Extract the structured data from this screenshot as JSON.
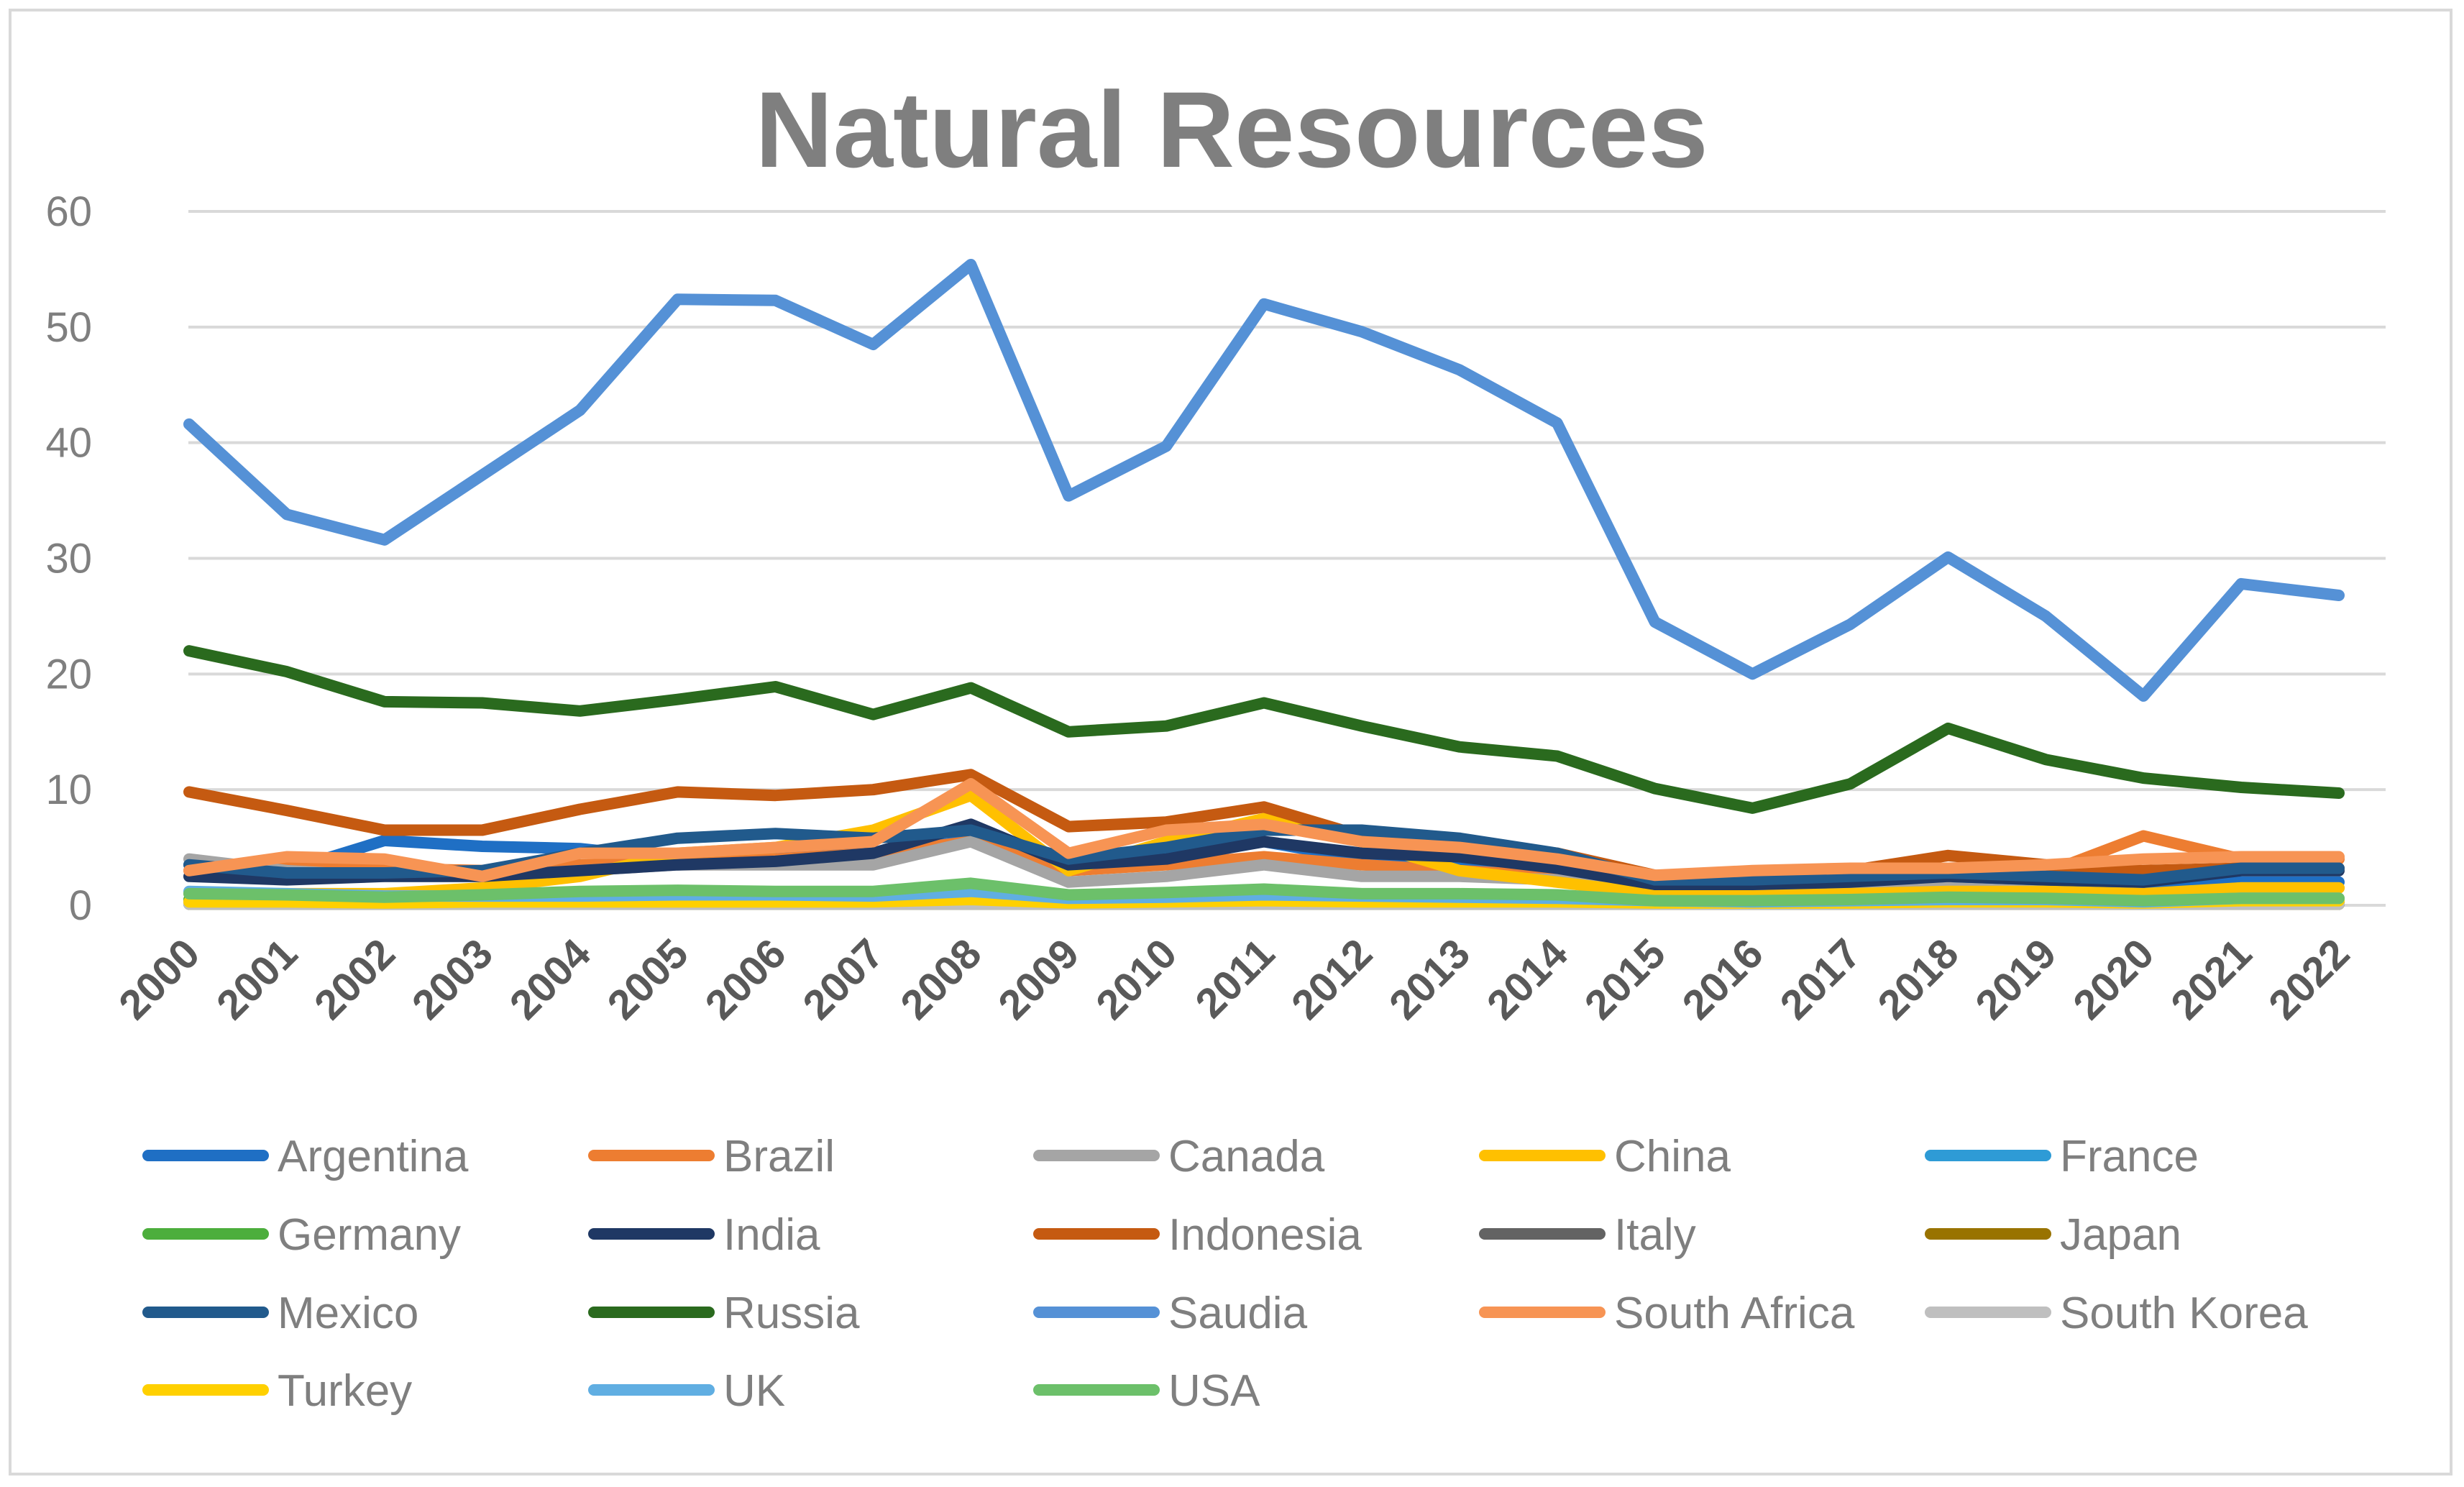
{
  "chart_data": {
    "type": "line",
    "title": "Natural Resources",
    "xlabel": "",
    "ylabel": "",
    "ylim": [
      0,
      60
    ],
    "yticks": [
      "0",
      "10",
      "20",
      "30",
      "40",
      "50",
      "60"
    ],
    "grid": true,
    "legend_position": "bottom",
    "categories": [
      "2000",
      "2001",
      "2002",
      "2003",
      "2004",
      "2005",
      "2006",
      "2007",
      "2008",
      "2009",
      "2010",
      "2011",
      "2012",
      "2013",
      "2014",
      "2015",
      "2016",
      "2017",
      "2018",
      "2019",
      "2020",
      "2021",
      "2022"
    ],
    "series": [
      {
        "name": "Argentina",
        "color": "#1f6fc4",
        "values": [
          3.5,
          3.0,
          5.6,
          5.1,
          4.9,
          4.0,
          4.2,
          4.5,
          5.6,
          3.0,
          4.2,
          5.5,
          4.0,
          3.5,
          3.2,
          1.4,
          1.5,
          1.5,
          1.5,
          1.5,
          1.5,
          2.0,
          2.0
        ]
      },
      {
        "name": "Brazil",
        "color": "#ed7d31",
        "values": [
          3.0,
          3.2,
          3.2,
          3.0,
          3.5,
          3.6,
          4.0,
          4.5,
          5.5,
          3.0,
          3.5,
          4.2,
          3.5,
          3.0,
          2.5,
          1.8,
          2.0,
          2.2,
          2.5,
          2.8,
          6.0,
          4.0,
          4.0
        ]
      },
      {
        "name": "Canada",
        "color": "#a5a5a5",
        "values": [
          4.0,
          3.0,
          2.5,
          2.5,
          3.0,
          3.5,
          3.5,
          3.5,
          5.5,
          2.0,
          2.5,
          3.5,
          2.5,
          2.5,
          2.2,
          1.0,
          1.0,
          1.2,
          1.5,
          1.2,
          0.8,
          1.5,
          1.5
        ]
      },
      {
        "name": "China",
        "color": "#ffc000",
        "values": [
          1.0,
          1.0,
          1.0,
          1.5,
          2.5,
          4.5,
          5.0,
          6.5,
          9.5,
          3.0,
          5.5,
          7.5,
          5.5,
          3.0,
          2.0,
          1.0,
          0.8,
          1.0,
          1.2,
          1.2,
          1.0,
          1.5,
          1.5
        ]
      },
      {
        "name": "France",
        "color": "#2e9bd6",
        "values": [
          0.1,
          0.1,
          0.1,
          0.1,
          0.1,
          0.1,
          0.1,
          0.1,
          0.1,
          0.1,
          0.1,
          0.1,
          0.1,
          0.1,
          0.1,
          0.1,
          0.1,
          0.1,
          0.1,
          0.1,
          0.1,
          0.1,
          0.1
        ]
      },
      {
        "name": "Germany",
        "color": "#4cae3c",
        "values": [
          0.5,
          0.4,
          0.3,
          0.3,
          0.3,
          0.3,
          0.3,
          0.3,
          0.4,
          0.2,
          0.2,
          0.3,
          0.2,
          0.2,
          0.2,
          0.1,
          0.1,
          0.1,
          0.1,
          0.1,
          0.1,
          0.2,
          0.2
        ]
      },
      {
        "name": "India",
        "color": "#1f3864",
        "values": [
          2.5,
          2.2,
          2.5,
          2.5,
          3.0,
          3.5,
          3.8,
          4.5,
          7.0,
          3.5,
          4.0,
          5.5,
          4.5,
          4.2,
          3.2,
          1.8,
          1.8,
          2.0,
          2.5,
          2.2,
          2.0,
          3.0,
          3.0
        ]
      },
      {
        "name": "Indonesia",
        "color": "#c55a11",
        "values": [
          9.8,
          8.2,
          6.5,
          6.5,
          8.3,
          9.8,
          9.5,
          10.0,
          11.3,
          6.8,
          7.2,
          8.5,
          6.0,
          5.2,
          4.5,
          2.6,
          2.5,
          3.0,
          4.3,
          3.5,
          3.0,
          3.2,
          3.2
        ]
      },
      {
        "name": "Italy",
        "color": "#636363",
        "values": [
          0.3,
          0.3,
          0.3,
          0.3,
          0.3,
          0.3,
          0.3,
          0.3,
          0.3,
          0.2,
          0.2,
          0.2,
          0.2,
          0.2,
          0.2,
          0.1,
          0.1,
          0.1,
          0.1,
          0.1,
          0.1,
          0.1,
          0.1
        ]
      },
      {
        "name": "Japan",
        "color": "#997300",
        "values": [
          0.1,
          0.1,
          0.1,
          0.1,
          0.1,
          0.1,
          0.1,
          0.1,
          0.1,
          0.1,
          0.1,
          0.1,
          0.1,
          0.1,
          0.1,
          0.1,
          0.1,
          0.1,
          0.1,
          0.1,
          0.1,
          0.1,
          0.1
        ]
      },
      {
        "name": "Mexico",
        "color": "#215a8c",
        "values": [
          3.5,
          2.8,
          2.8,
          3.0,
          4.5,
          5.8,
          6.2,
          5.8,
          6.5,
          4.0,
          5.0,
          6.5,
          6.5,
          5.8,
          4.5,
          2.2,
          2.2,
          2.5,
          2.8,
          2.5,
          2.2,
          3.2,
          3.2
        ]
      },
      {
        "name": "Russia",
        "color": "#2a6a1e",
        "values": [
          22.0,
          20.2,
          17.6,
          17.5,
          16.8,
          17.8,
          18.9,
          16.5,
          18.8,
          15.0,
          15.5,
          17.5,
          15.5,
          13.7,
          12.9,
          10.1,
          8.4,
          10.5,
          15.3,
          12.6,
          11.0,
          10.2,
          9.7
        ]
      },
      {
        "name": "Saudia",
        "color": "#5591d6",
        "values": [
          41.6,
          33.8,
          31.6,
          37.2,
          42.8,
          52.4,
          52.3,
          48.5,
          55.4,
          35.4,
          39.7,
          52.0,
          49.6,
          46.3,
          41.7,
          24.5,
          20.0,
          24.3,
          30.1,
          25.0,
          18.1,
          27.8,
          26.8
        ]
      },
      {
        "name": "South Africa",
        "color": "#f79454",
        "values": [
          3.0,
          4.2,
          4.0,
          2.5,
          4.5,
          4.5,
          5.0,
          5.5,
          10.5,
          4.5,
          6.5,
          7.0,
          5.5,
          5.0,
          4.0,
          2.6,
          3.0,
          3.2,
          3.2,
          3.5,
          4.0,
          4.2,
          4.2
        ]
      },
      {
        "name": "South Korea",
        "color": "#bfbfbf",
        "values": [
          0.1,
          0.1,
          0.1,
          0.1,
          0.1,
          0.1,
          0.1,
          0.1,
          0.1,
          0.1,
          0.1,
          0.1,
          0.1,
          0.1,
          0.1,
          0.1,
          0.1,
          0.1,
          0.1,
          0.1,
          0.1,
          0.1,
          0.1
        ]
      },
      {
        "name": "Turkey",
        "color": "#ffd000",
        "values": [
          0.3,
          0.3,
          0.2,
          0.3,
          0.3,
          0.3,
          0.3,
          0.3,
          0.5,
          0.2,
          0.3,
          0.4,
          0.3,
          0.3,
          0.3,
          0.2,
          0.2,
          0.2,
          0.3,
          0.3,
          0.2,
          0.4,
          0.4
        ]
      },
      {
        "name": "UK",
        "color": "#60aee2",
        "values": [
          1.2,
          1.0,
          0.8,
          0.8,
          0.8,
          0.9,
          0.9,
          0.8,
          1.2,
          0.6,
          0.7,
          0.9,
          0.8,
          0.7,
          0.6,
          0.4,
          0.3,
          0.4,
          0.5,
          0.5,
          0.3,
          0.6,
          0.6
        ]
      },
      {
        "name": "USA",
        "color": "#6cc06a",
        "values": [
          1.0,
          0.9,
          0.7,
          0.9,
          1.2,
          1.3,
          1.2,
          1.2,
          1.9,
          0.9,
          1.1,
          1.4,
          1.0,
          1.0,
          0.9,
          0.4,
          0.4,
          0.5,
          0.7,
          0.6,
          0.4,
          0.6,
          0.6
        ]
      }
    ]
  }
}
